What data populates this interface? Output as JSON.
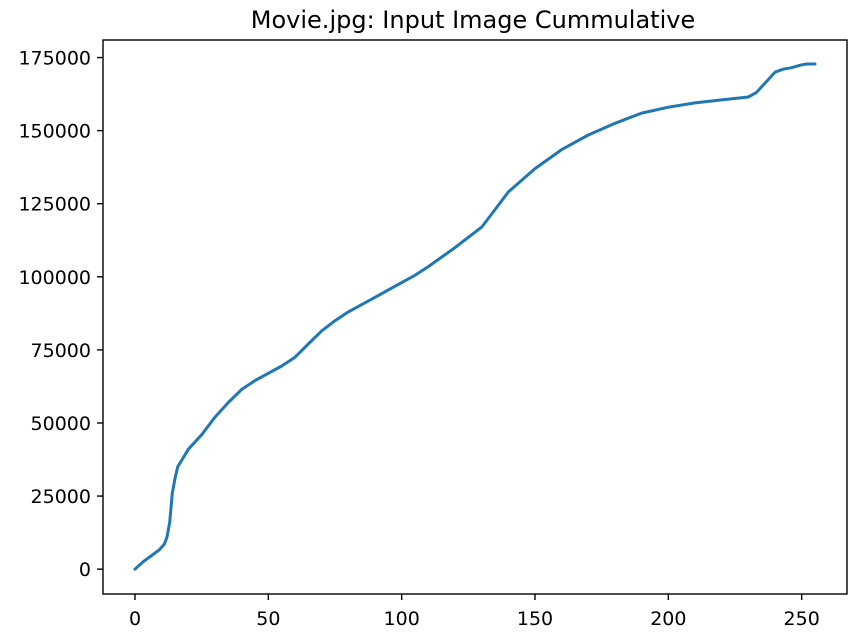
{
  "chart_data": {
    "type": "line",
    "title": "Movie.jpg: Input Image Cummulative",
    "xlabel": "",
    "ylabel": "",
    "xlim": [
      -12,
      267
    ],
    "ylim": [
      -8500,
      181000
    ],
    "xticks": [
      0,
      50,
      100,
      150,
      200,
      250
    ],
    "yticks": [
      0,
      25000,
      50000,
      75000,
      100000,
      125000,
      150000,
      175000
    ],
    "grid": false,
    "legend": "none",
    "series": [
      {
        "color": "#1f77b4",
        "x": [
          0,
          3,
          6,
          9,
          11,
          12,
          13,
          14,
          15,
          16,
          18,
          20,
          25,
          30,
          35,
          40,
          45,
          50,
          55,
          60,
          65,
          70,
          75,
          80,
          90,
          100,
          105,
          110,
          120,
          130,
          135,
          140,
          150,
          160,
          170,
          180,
          190,
          200,
          210,
          220,
          230,
          233,
          236,
          240,
          243,
          246,
          250,
          252,
          255
        ],
        "values": [
          0,
          2500,
          4500,
          6500,
          8500,
          11000,
          16000,
          26000,
          31000,
          35000,
          38000,
          41000,
          46000,
          52000,
          57000,
          61500,
          64500,
          67000,
          69500,
          72500,
          77000,
          81500,
          85000,
          88000,
          93000,
          98000,
          100500,
          103500,
          110000,
          117000,
          123000,
          129000,
          137000,
          143500,
          148500,
          152500,
          156000,
          158000,
          159500,
          160500,
          161500,
          163000,
          166000,
          170000,
          171000,
          171500,
          172500,
          172800,
          172800
        ]
      }
    ]
  }
}
